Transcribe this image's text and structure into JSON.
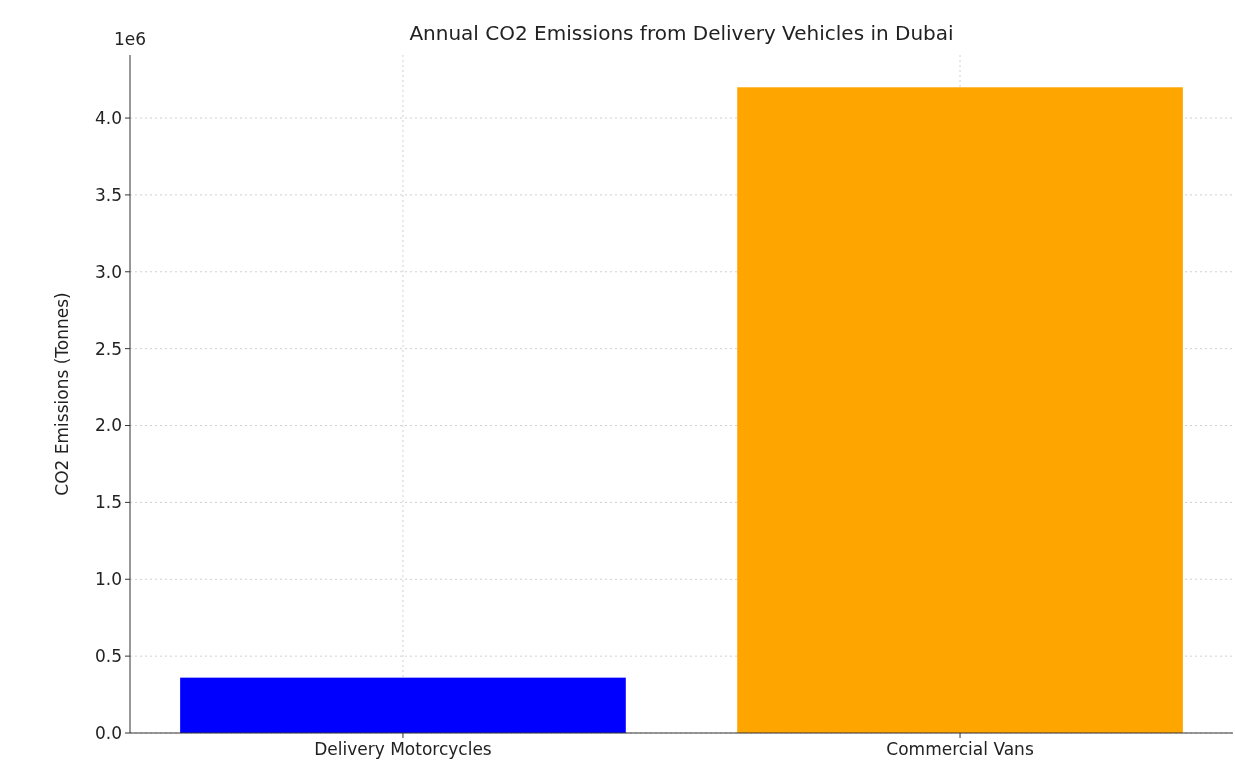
{
  "chart_data": {
    "type": "bar",
    "title": "Annual CO2 Emissions from Delivery Vehicles in Dubai",
    "ylabel": "CO2 Emissions (Tonnes)",
    "categories": [
      "Delivery Motorcycles",
      "Commercial Vans"
    ],
    "values": [
      0.36,
      4.2
    ],
    "colors": [
      "#0000ff",
      "#ffa500"
    ],
    "ylim": [
      0,
      4.41
    ],
    "yticks": [
      {
        "value": 0,
        "label": "0.0"
      },
      0.5,
      {
        "value": 1,
        "label": "1.0"
      },
      1.5,
      {
        "value": 2,
        "label": "2.0"
      },
      2.5,
      {
        "value": 3,
        "label": "3.0"
      },
      3.5,
      {
        "value": 4,
        "label": "4.0"
      }
    ],
    "annotations": [
      "1e6"
    ],
    "grid": true
  }
}
